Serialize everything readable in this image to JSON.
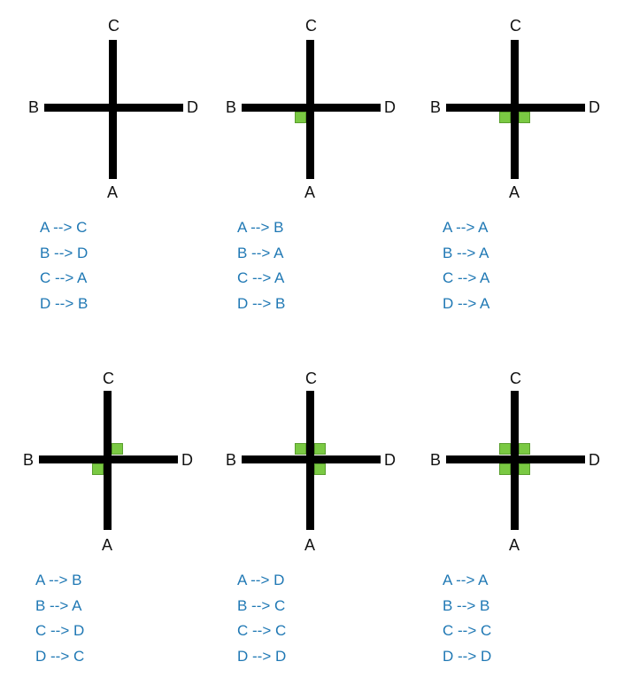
{
  "panels": [
    {
      "labels": {
        "top": "C",
        "left": "B",
        "right": "D",
        "bottom": "A"
      },
      "rules": [
        "A --> C",
        "B --> D",
        "C --> A",
        "D --> B"
      ]
    },
    {
      "labels": {
        "top": "C",
        "left": "B",
        "right": "D",
        "bottom": "A"
      },
      "rules": [
        "A --> B",
        "B --> A",
        "C --> A",
        "D --> B"
      ]
    },
    {
      "labels": {
        "top": "C",
        "left": "B",
        "right": "D",
        "bottom": "A"
      },
      "rules": [
        "A --> A",
        "B --> A",
        "C --> A",
        "D --> A"
      ]
    },
    {
      "labels": {
        "top": "C",
        "left": "B",
        "right": "D",
        "bottom": "A"
      },
      "rules": [
        "A --> B",
        "B --> A",
        "C --> D",
        "D --> C"
      ]
    },
    {
      "labels": {
        "top": "C",
        "left": "B",
        "right": "D",
        "bottom": "A"
      },
      "rules": [
        "A --> D",
        "B --> C",
        "C --> C",
        "D --> D"
      ]
    },
    {
      "labels": {
        "top": "C",
        "left": "B",
        "right": "D",
        "bottom": "A"
      },
      "rules": [
        "A --> A",
        "B --> B",
        "C --> C",
        "D --> D"
      ]
    }
  ],
  "colors": {
    "bar": "#000000",
    "highlight": "#7ac943",
    "rule_text": "#1f78b4"
  }
}
